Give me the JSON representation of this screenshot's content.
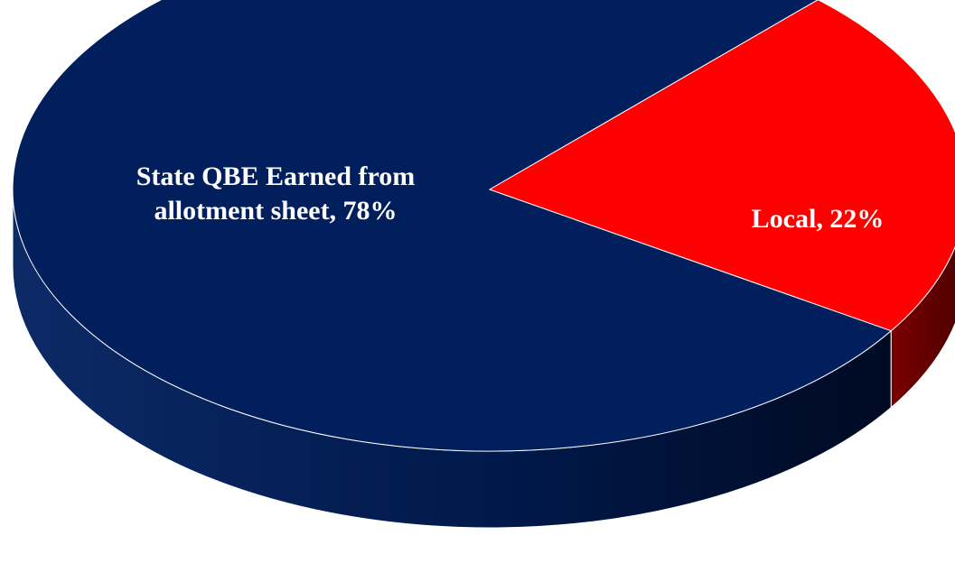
{
  "chart_data": {
    "type": "pie",
    "style": "3d",
    "title": "",
    "slices": [
      {
        "label": "State QBE Earned from allotment sheet",
        "value": 78,
        "display": "State QBE Earned from\nallotment sheet, 78%",
        "color": "#001f5c",
        "side_color": "#00123a"
      },
      {
        "label": "Local",
        "value": 22,
        "display": "Local, 22%",
        "color": "#ff0000",
        "side_color": "#6e0000"
      }
    ],
    "legend": "none"
  }
}
